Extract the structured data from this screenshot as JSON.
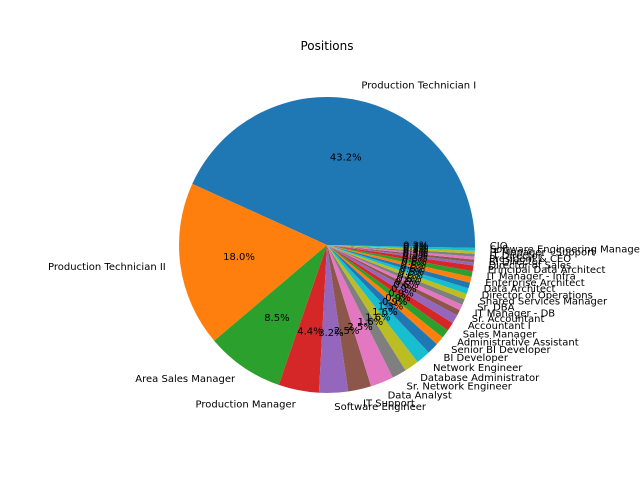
{
  "chart_data": {
    "type": "pie",
    "title": "Positions",
    "start_angle_deg": 0,
    "counterclock": true,
    "pct_format": "{:.1f}%",
    "labels": [
      "Production Technician I",
      "Production Technician II",
      "Area Sales Manager",
      "Production Manager",
      "Software Engineer",
      "IT Support",
      "Data Analyst",
      "Sr. Network Engineer",
      "Database Administrator",
      "Network Engineer",
      "BI Developer",
      "Senior BI Developer",
      "Administrative Assistant",
      "Sales Manager",
      "Accountant I",
      "Sr. Accountant",
      "IT Manager - DB",
      "Sr. DBA",
      "Shared Services Manager",
      "Director of Operations",
      "Data Architect",
      "Enterprise Architect",
      "IT Manager - Infra",
      "Principal Data Architect",
      "Director of Sales",
      "BI Director",
      "President & CEO",
      "IT Director",
      "IT Manager - Support",
      "Software Engineering Manager",
      "CIO"
    ],
    "values": [
      137,
      57,
      27,
      14,
      10,
      8,
      8,
      5,
      5,
      5,
      4,
      3,
      3,
      3,
      3,
      2,
      2,
      2,
      2,
      2,
      2,
      2,
      2,
      2,
      1,
      1,
      1,
      1,
      1,
      1,
      1
    ],
    "colors": [
      "#1f77b4",
      "#ff7f0e",
      "#2ca02c",
      "#d62728",
      "#9467bd",
      "#8c564b",
      "#e377c2",
      "#7f7f7f",
      "#bcbd22",
      "#17becf"
    ]
  }
}
